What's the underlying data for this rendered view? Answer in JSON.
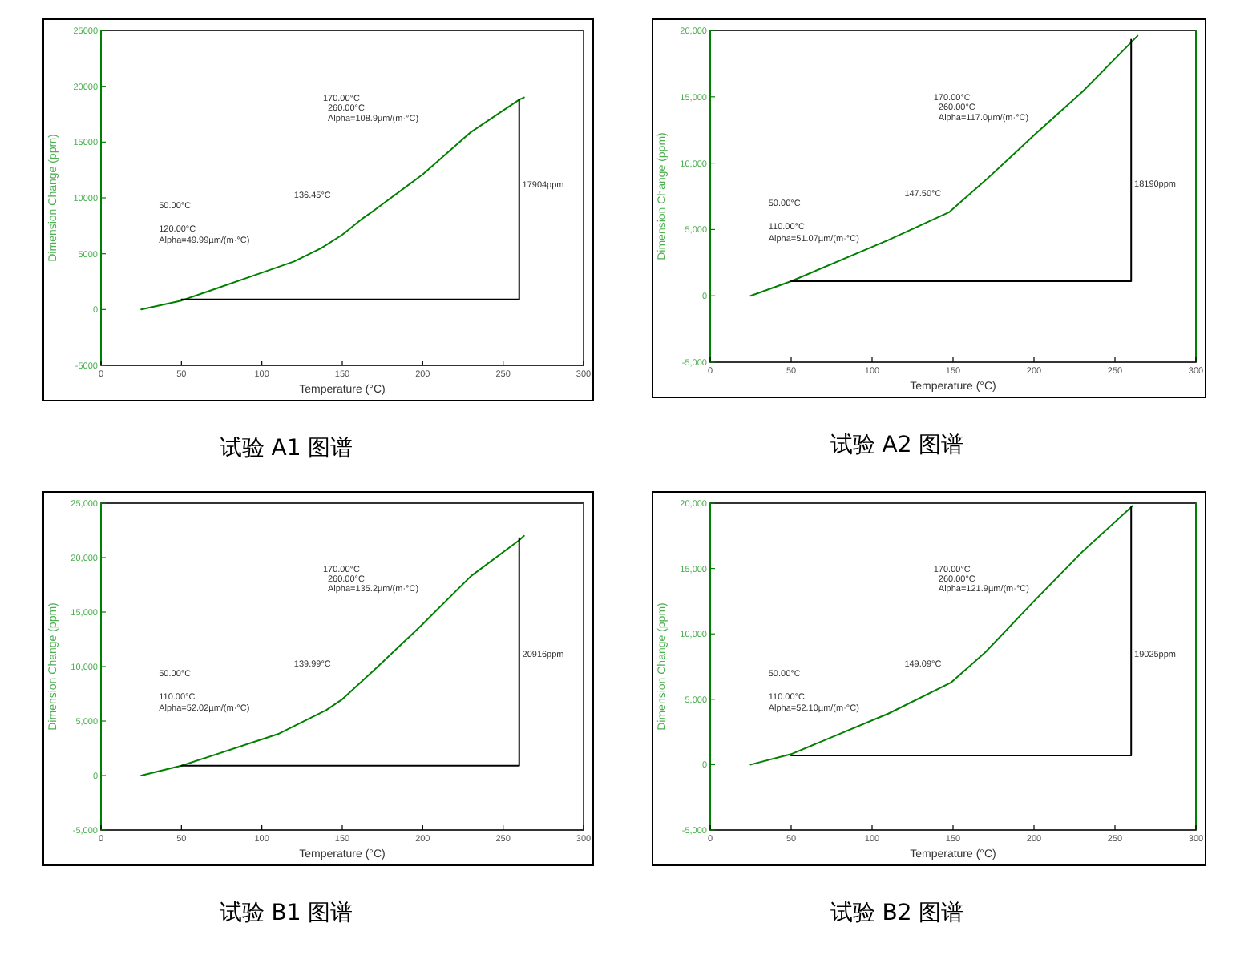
{
  "chart_data": [
    {
      "type": "line",
      "title": "试验 A1 图谱",
      "xlabel": "Temperature (°C)",
      "ylabel": "Dimension Change (ppm)",
      "xlim": [
        0,
        300
      ],
      "ylim": [
        -5000,
        25000
      ],
      "xticks": [
        0,
        50,
        100,
        150,
        200,
        250,
        300
      ],
      "yticks": [
        -5000,
        0,
        5000,
        10000,
        15000,
        20000,
        25000
      ],
      "series": [
        {
          "color": "#008000",
          "x": [
            25,
            50,
            100,
            120,
            137,
            150,
            163,
            170,
            200,
            230,
            260,
            263
          ],
          "values": [
            0,
            800,
            3300,
            4300,
            5500,
            6700,
            8200,
            8900,
            12100,
            15900,
            18800,
            19000
          ]
        },
        {
          "color": "#000000",
          "x": [
            50,
            260,
            260
          ],
          "values": [
            900,
            900,
            18800
          ]
        }
      ],
      "annotations": [
        "50.00°C",
        "120.00°C",
        "Alpha=49.99µm/(m·°C)",
        "136.45°C",
        "170.00°C",
        "260.00°C",
        "Alpha=108.9µm/(m·°C)",
        "17904ppm"
      ]
    },
    {
      "type": "line",
      "title": "试验 A2 图谱",
      "xlabel": "Temperature (°C)",
      "ylabel": "Dimension Change (ppm)",
      "xlim": [
        0,
        300
      ],
      "ylim": [
        -5000,
        20000
      ],
      "xticks": [
        0,
        50,
        100,
        150,
        200,
        250,
        300
      ],
      "yticks": [
        {
          "value": -5000,
          "label": "-5,000"
        },
        0,
        {
          "value": 5000,
          "label": "5,000"
        },
        {
          "value": 10000,
          "label": "10,000"
        },
        {
          "value": 15000,
          "label": "15,000"
        },
        {
          "value": 20000,
          "label": "20,000"
        }
      ],
      "series": [
        {
          "color": "#008000",
          "x": [
            25,
            50,
            110,
            147.5,
            170,
            200,
            230,
            260,
            264
          ],
          "values": [
            0,
            1100,
            4200,
            6300,
            8700,
            12100,
            15400,
            19100,
            19600
          ]
        },
        {
          "color": "#000000",
          "x": [
            50,
            260,
            260
          ],
          "values": [
            1100,
            1100,
            19300
          ]
        }
      ],
      "annotations": [
        "50.00°C",
        "110.00°C",
        "Alpha=51.07µm/(m·°C)",
        "147.50°C",
        "170.00°C",
        "260.00°C",
        "Alpha=117.0µm/(m·°C)",
        "18190ppm"
      ]
    },
    {
      "type": "line",
      "title": "试验 B1 图谱",
      "xlabel": "Temperature (°C)",
      "ylabel": "Dimension Change (ppm)",
      "xlim": [
        0,
        300
      ],
      "ylim": [
        -5000,
        25000
      ],
      "xticks": [
        0,
        50,
        100,
        150,
        200,
        250,
        300
      ],
      "yticks": [
        {
          "value": -5000,
          "label": "-5,000"
        },
        0,
        {
          "value": 5000,
          "label": "5,000"
        },
        {
          "value": 10000,
          "label": "10,000"
        },
        {
          "value": 15000,
          "label": "15,000"
        },
        {
          "value": 20000,
          "label": "20,000"
        },
        {
          "value": 25000,
          "label": "25,000"
        }
      ],
      "series": [
        {
          "color": "#008000",
          "x": [
            25,
            50,
            110,
            140,
            150,
            170,
            200,
            230,
            260,
            263
          ],
          "values": [
            0,
            900,
            3800,
            6000,
            7000,
            9700,
            13900,
            18300,
            21600,
            22000
          ]
        },
        {
          "color": "#000000",
          "x": [
            50,
            260,
            260
          ],
          "values": [
            900,
            900,
            21800
          ]
        }
      ],
      "annotations": [
        "50.00°C",
        "110.00°C",
        "Alpha=52.02µm/(m·°C)",
        "139.99°C",
        "170.00°C",
        "260.00°C",
        "Alpha=135.2µm/(m·°C)",
        "20916ppm"
      ]
    },
    {
      "type": "line",
      "title": "试验 B2 图谱",
      "xlabel": "Temperature (°C)",
      "ylabel": "Dimension Change (ppm)",
      "xlim": [
        0,
        300
      ],
      "ylim": [
        -5000,
        20000
      ],
      "xticks": [
        0,
        50,
        100,
        150,
        200,
        250,
        300
      ],
      "yticks": [
        {
          "value": -5000,
          "label": "-5,000"
        },
        0,
        {
          "value": 5000,
          "label": "5,000"
        },
        {
          "value": 10000,
          "label": "10,000"
        },
        {
          "value": 15000,
          "label": "15,000"
        },
        {
          "value": 20000,
          "label": "20,000"
        }
      ],
      "series": [
        {
          "color": "#008000",
          "x": [
            25,
            50,
            110,
            149,
            170,
            200,
            230,
            260,
            261
          ],
          "values": [
            0,
            800,
            3900,
            6300,
            8600,
            12500,
            16300,
            19700,
            19800
          ]
        },
        {
          "color": "#000000",
          "x": [
            50,
            260,
            260
          ],
          "values": [
            700,
            700,
            19700
          ]
        }
      ],
      "annotations": [
        "50.00°C",
        "110.00°C",
        "Alpha=52.10µm/(m·°C)",
        "149.09°C",
        "170.00°C",
        "260.00°C",
        "Alpha=121.9µm/(m·°C)",
        "19025ppm"
      ]
    }
  ]
}
